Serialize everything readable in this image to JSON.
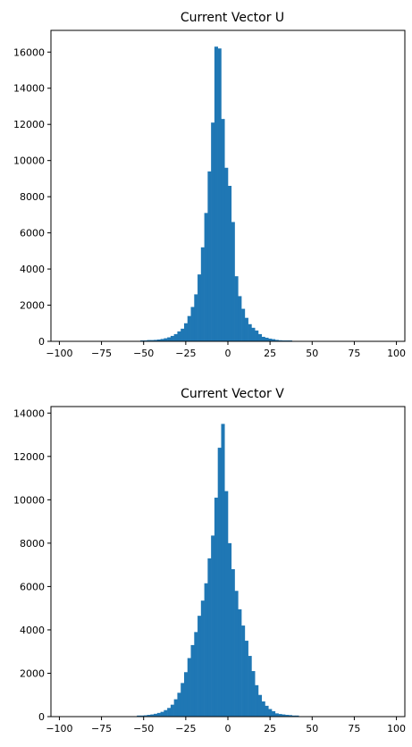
{
  "chart_data": [
    {
      "type": "bar",
      "title": "Current Vector U",
      "xlabel": "",
      "ylabel": "",
      "xlim": [
        -105,
        105
      ],
      "ylim": [
        0,
        17200
      ],
      "grid": false,
      "bar_color": "#1f77b4",
      "xticks": [
        -100,
        -75,
        -50,
        -25,
        0,
        25,
        50,
        75,
        100
      ],
      "yticks": [
        0,
        2000,
        4000,
        6000,
        8000,
        10000,
        12000,
        14000,
        16000
      ],
      "bins": {
        "start": -100,
        "width": 2,
        "counts": [
          0,
          0,
          0,
          0,
          0,
          0,
          0,
          0,
          0,
          0,
          0,
          0,
          0,
          0,
          0,
          0,
          0,
          0,
          0,
          0,
          0,
          0,
          0,
          0,
          50,
          50,
          70,
          70,
          80,
          100,
          130,
          170,
          220,
          300,
          400,
          550,
          700,
          1000,
          1400,
          1900,
          2600,
          3700,
          5200,
          7100,
          9400,
          12100,
          16300,
          16200,
          12300,
          9600,
          8600,
          6600,
          3600,
          2500,
          1800,
          1300,
          950,
          750,
          600,
          400,
          250,
          200,
          150,
          120,
          80,
          60,
          50,
          50,
          50,
          0,
          0,
          0,
          0,
          0,
          0,
          0,
          0,
          0,
          0,
          0,
          0,
          0,
          0,
          0,
          0,
          0,
          0,
          0,
          0,
          0,
          0,
          0,
          0,
          0,
          0,
          0,
          0,
          0,
          0,
          0
        ]
      }
    },
    {
      "type": "bar",
      "title": "Current Vector V",
      "xlabel": "",
      "ylabel": "",
      "xlim": [
        -105,
        105
      ],
      "ylim": [
        0,
        14300
      ],
      "grid": false,
      "bar_color": "#1f77b4",
      "xticks": [
        -100,
        -75,
        -50,
        -25,
        0,
        25,
        50,
        75,
        100
      ],
      "yticks": [
        0,
        2000,
        4000,
        6000,
        8000,
        10000,
        12000,
        14000
      ],
      "bins": {
        "start": -100,
        "width": 2,
        "counts": [
          0,
          0,
          0,
          0,
          0,
          0,
          0,
          0,
          0,
          0,
          0,
          0,
          0,
          0,
          0,
          0,
          0,
          0,
          0,
          0,
          0,
          0,
          0,
          50,
          50,
          60,
          80,
          100,
          130,
          170,
          220,
          300,
          400,
          550,
          800,
          1100,
          1550,
          2050,
          2700,
          3300,
          3900,
          4650,
          5350,
          6150,
          7300,
          8350,
          10100,
          12400,
          13500,
          10400,
          8000,
          6800,
          5800,
          4950,
          4200,
          3500,
          2800,
          2100,
          1450,
          1000,
          700,
          500,
          350,
          250,
          150,
          120,
          100,
          80,
          70,
          50,
          50,
          0,
          0,
          0,
          0,
          0,
          0,
          0,
          0,
          0,
          0,
          0,
          0,
          0,
          0,
          0,
          0,
          0,
          0,
          0,
          0,
          0,
          0,
          0,
          0,
          0,
          0,
          0,
          0,
          0
        ]
      }
    }
  ]
}
